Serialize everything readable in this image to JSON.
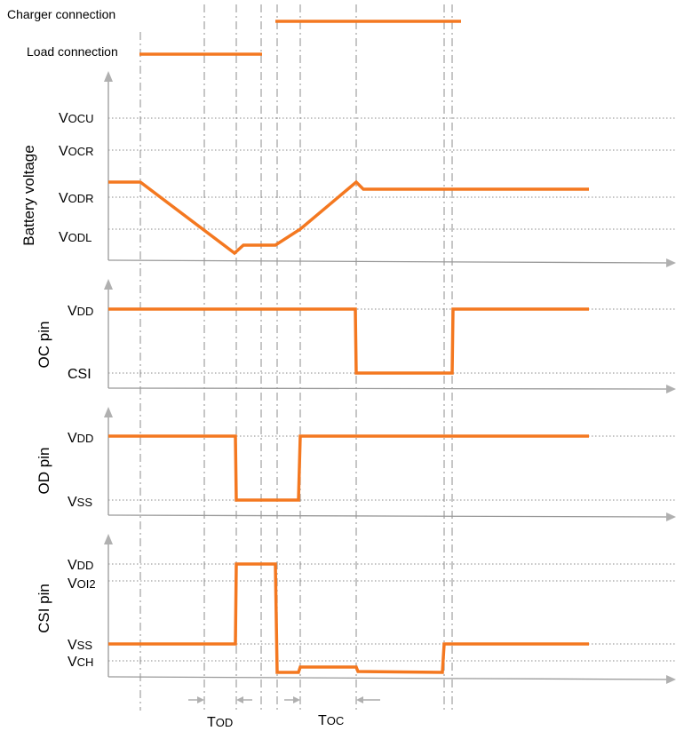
{
  "colors": {
    "trace": "#f47820",
    "axis": "#999999",
    "guide": "#a0a0a0"
  },
  "connections": {
    "charger_label": "Charger connection",
    "load_label": "Load connection"
  },
  "panels": {
    "battery": {
      "ylabel": "Battery voltage",
      "levels": [
        {
          "main": "V",
          "sub": "OCU"
        },
        {
          "main": "V",
          "sub": "OCR"
        },
        {
          "main": "V",
          "sub": "ODR"
        },
        {
          "main": "V",
          "sub": "ODL"
        }
      ]
    },
    "oc": {
      "ylabel": "OC pin",
      "levels": [
        {
          "main": "V",
          "sub": "DD"
        },
        {
          "main": "CSI",
          "sub": ""
        }
      ]
    },
    "od": {
      "ylabel": "OD pin",
      "levels": [
        {
          "main": "V",
          "sub": "DD"
        },
        {
          "main": "V",
          "sub": "SS"
        }
      ]
    },
    "csi": {
      "ylabel": "CSI pin",
      "levels": [
        {
          "main": "V",
          "sub": "DD"
        },
        {
          "main": "V",
          "sub": "OI2"
        },
        {
          "main": "V",
          "sub": "SS"
        },
        {
          "main": "V",
          "sub": "CH"
        }
      ]
    }
  },
  "timing": {
    "tod": {
      "main": "T",
      "sub": "OD"
    },
    "toc": {
      "main": "T",
      "sub": "OC"
    }
  }
}
